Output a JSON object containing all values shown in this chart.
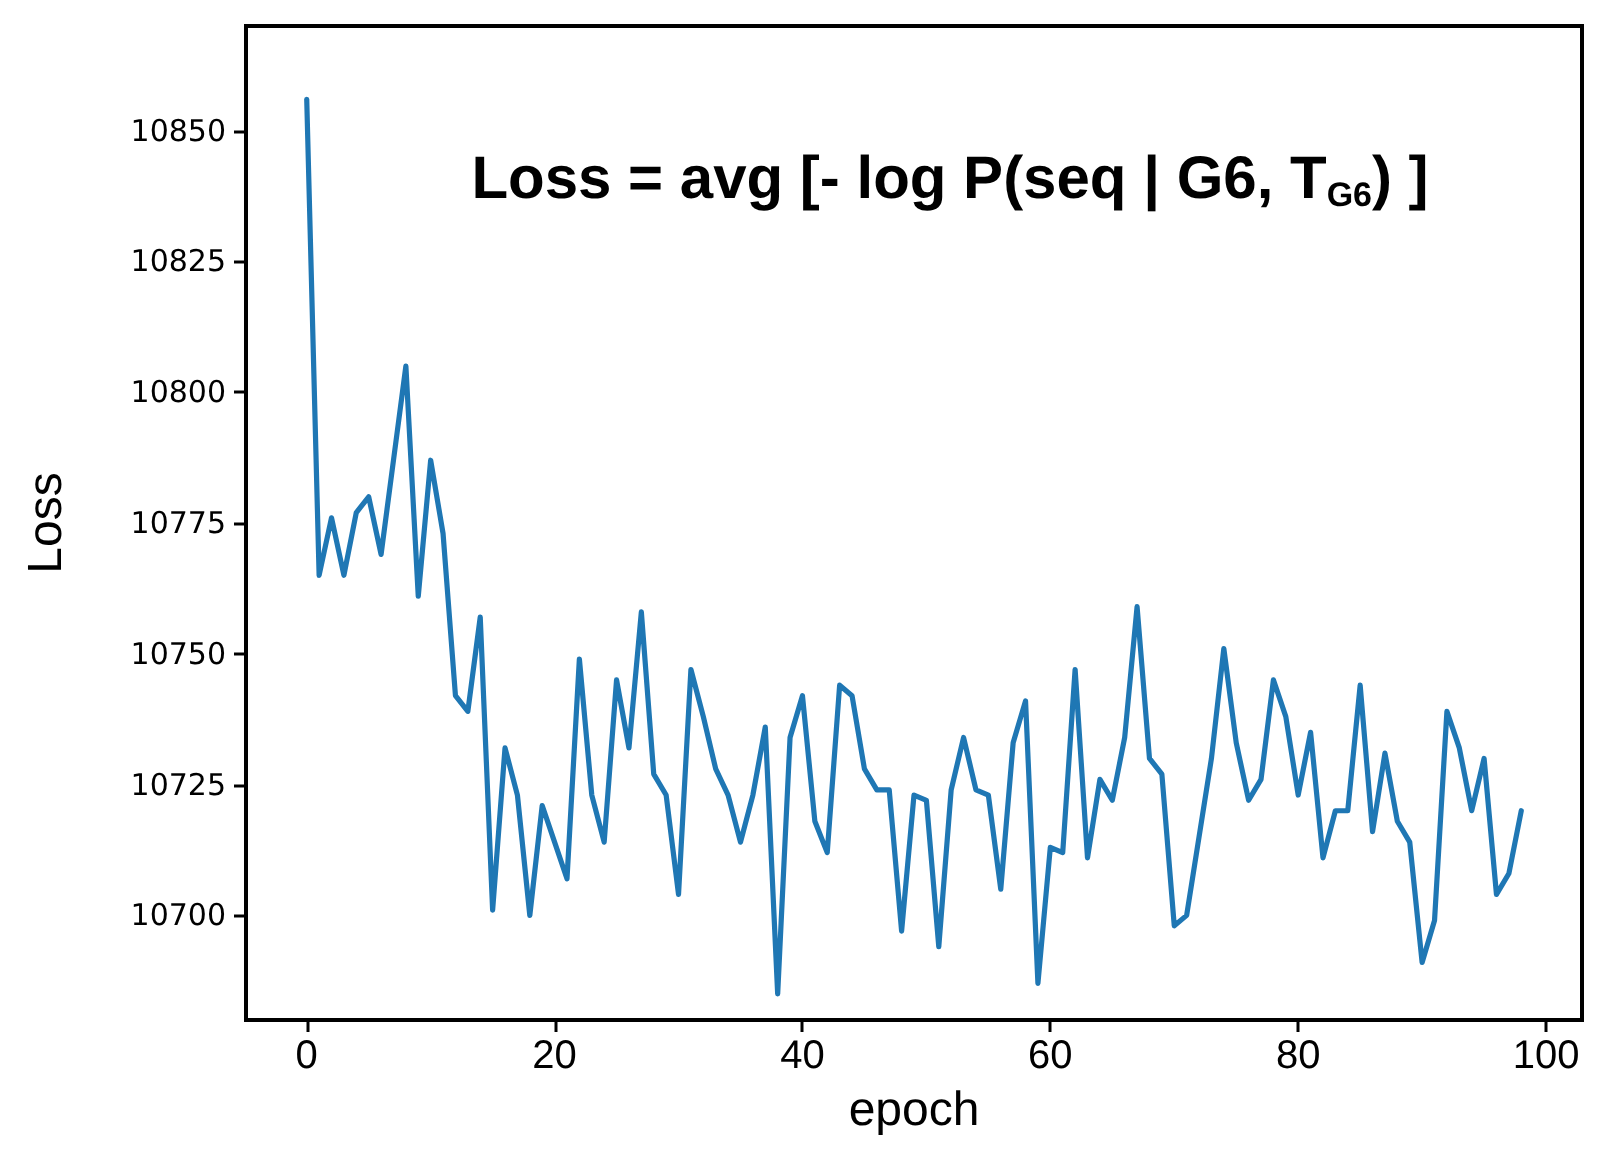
{
  "chart_data": {
    "type": "line",
    "title": "Loss = avg [- log P(seq | G6, T$_{G6}$) ]",
    "xlabel": "epoch",
    "ylabel": "Loss",
    "x": [
      0,
      1,
      2,
      3,
      4,
      5,
      6,
      7,
      8,
      9,
      10,
      11,
      12,
      13,
      14,
      15,
      16,
      17,
      18,
      19,
      20,
      21,
      22,
      23,
      24,
      25,
      26,
      27,
      28,
      29,
      30,
      31,
      32,
      33,
      34,
      35,
      36,
      37,
      38,
      39,
      40,
      41,
      42,
      43,
      44,
      45,
      46,
      47,
      48,
      49,
      50,
      51,
      52,
      53,
      54,
      55,
      56,
      57,
      58,
      59,
      60,
      61,
      62,
      63,
      64,
      65,
      66,
      67,
      68,
      69,
      70,
      71,
      72,
      73,
      74,
      75,
      76,
      77,
      78,
      79,
      80,
      81,
      82,
      83,
      84,
      85,
      86,
      87,
      88,
      89,
      90,
      91,
      92,
      93,
      94,
      95,
      96,
      97,
      98
    ],
    "series": [
      {
        "color": "#1f77b4",
        "values": [
          10856,
          10765,
          10776,
          10765,
          10777,
          10780,
          10769,
          10787,
          10805,
          10761,
          10787,
          10773,
          10742,
          10739,
          10757,
          10701,
          10732,
          10723,
          10700,
          10721,
          10714,
          10707,
          10749,
          10723,
          10714,
          10745,
          10732,
          10758,
          10727,
          10723,
          10704,
          10747,
          10738,
          10728,
          10723,
          10714,
          10723,
          10736,
          10685,
          10734,
          10742,
          10718,
          10712,
          10744,
          10742,
          10728,
          10724,
          10724,
          10697,
          10723,
          10722,
          10694,
          10724,
          10734,
          10724,
          10723,
          10705,
          10733,
          10741,
          10687,
          10713,
          10712,
          10747,
          10711,
          10726,
          10722,
          10734,
          10759,
          10730,
          10727,
          10698,
          10700,
          10715,
          10730,
          10751,
          10733,
          10722,
          10726,
          10745,
          10738,
          10723,
          10735,
          10711,
          10720,
          10720,
          10744,
          10716,
          10731,
          10718,
          10714,
          10691,
          10699,
          10739,
          10732,
          10720,
          10730,
          10704,
          10708,
          10720
        ]
      }
    ],
    "xlim": [
      -4.9,
      102.9
    ],
    "xticks": [
      0,
      20,
      40,
      60,
      80,
      100
    ],
    "ylim": [
      10680,
      10870
    ],
    "yticks": [
      10700,
      10725,
      10750,
      10775,
      10800,
      10825,
      10850
    ],
    "grid": false,
    "marker": "none",
    "line_style": "solid"
  }
}
